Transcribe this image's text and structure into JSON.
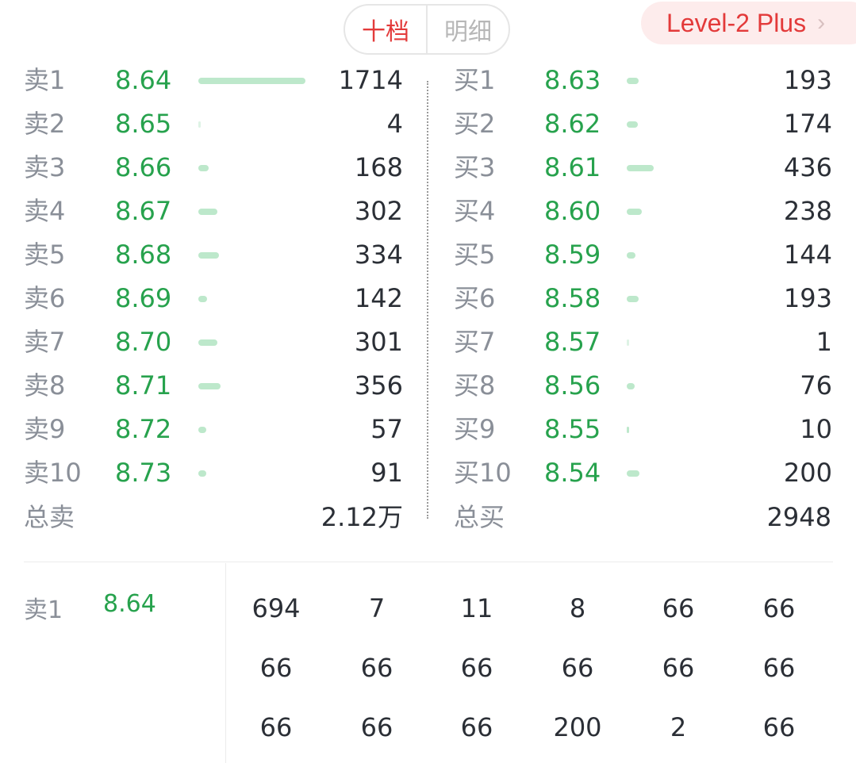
{
  "tabs": {
    "active": "十档",
    "inactive": "明细"
  },
  "badge": {
    "text": "Level-2 Plus",
    "chevron": "›"
  },
  "sell": [
    {
      "label": "卖1",
      "price": "8.64",
      "volume": "1714",
      "depth": 1714
    },
    {
      "label": "卖2",
      "price": "8.65",
      "volume": "4",
      "depth": 4
    },
    {
      "label": "卖3",
      "price": "8.66",
      "volume": "168",
      "depth": 168
    },
    {
      "label": "卖4",
      "price": "8.67",
      "volume": "302",
      "depth": 302
    },
    {
      "label": "卖5",
      "price": "8.68",
      "volume": "334",
      "depth": 334
    },
    {
      "label": "卖6",
      "price": "8.69",
      "volume": "142",
      "depth": 142
    },
    {
      "label": "卖7",
      "price": "8.70",
      "volume": "301",
      "depth": 301
    },
    {
      "label": "卖8",
      "price": "8.71",
      "volume": "356",
      "depth": 356
    },
    {
      "label": "卖9",
      "price": "8.72",
      "volume": "57",
      "depth": 57
    },
    {
      "label": "卖10",
      "price": "8.73",
      "volume": "91",
      "depth": 91
    }
  ],
  "buy": [
    {
      "label": "买1",
      "price": "8.63",
      "volume": "193",
      "depth": 193
    },
    {
      "label": "买2",
      "price": "8.62",
      "volume": "174",
      "depth": 174
    },
    {
      "label": "买3",
      "price": "8.61",
      "volume": "436",
      "depth": 436
    },
    {
      "label": "买4",
      "price": "8.60",
      "volume": "238",
      "depth": 238
    },
    {
      "label": "买5",
      "price": "8.59",
      "volume": "144",
      "depth": 144
    },
    {
      "label": "买6",
      "price": "8.58",
      "volume": "193",
      "depth": 193
    },
    {
      "label": "买7",
      "price": "8.57",
      "volume": "1",
      "depth": 1
    },
    {
      "label": "买8",
      "price": "8.56",
      "volume": "76",
      "depth": 76
    },
    {
      "label": "买9",
      "price": "8.55",
      "volume": "10",
      "depth": 10
    },
    {
      "label": "买10",
      "price": "8.54",
      "volume": "200",
      "depth": 200
    }
  ],
  "totals": {
    "sell_label": "总卖",
    "sell_value": "2.12万",
    "buy_label": "总买",
    "buy_value": "2948"
  },
  "queue": {
    "label": "卖1",
    "price": "8.64",
    "rows": [
      [
        "694",
        "7",
        "11",
        "8",
        "66",
        "66"
      ],
      [
        "66",
        "66",
        "66",
        "66",
        "66",
        "66"
      ],
      [
        "66",
        "66",
        "66",
        "200",
        "2",
        "66"
      ]
    ]
  },
  "colors": {
    "accent_red": "#e33a3a",
    "price_green": "#27a24d",
    "bar_green": "#bde8cb"
  }
}
